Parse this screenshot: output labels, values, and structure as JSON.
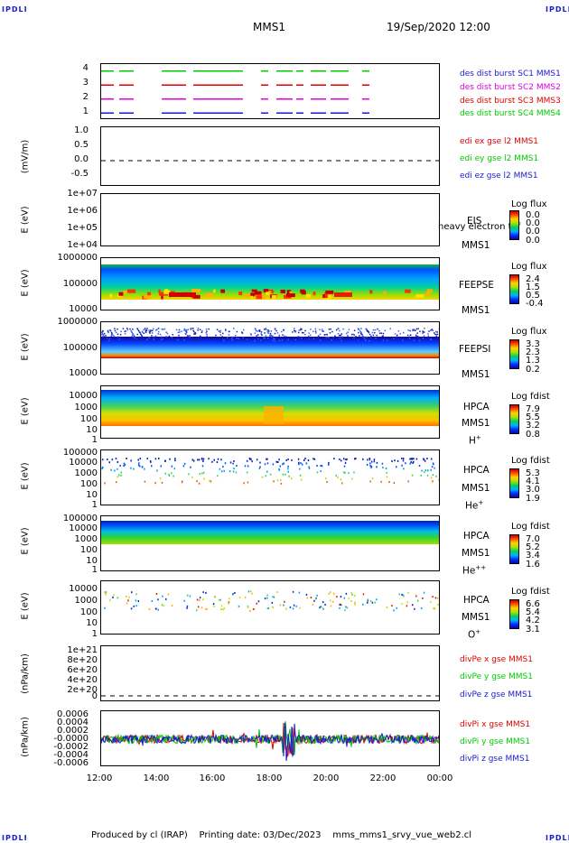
{
  "corners": {
    "tl": "IPDLI",
    "tr": "IPDLI",
    "bl": "IPDLI",
    "br": "IPDLI"
  },
  "header": {
    "spacecraft": "MMS1",
    "datetime": "19/Sep/2020 12:00"
  },
  "footer": {
    "text": "Produced by cl (IRAP)    Printing date: 03/Dec/2023    mms_mms1_srvy_vue_web2.cl"
  },
  "xaxis": {
    "ticks": [
      "12:00",
      "14:00",
      "16:00",
      "18:00",
      "20:00",
      "22:00",
      "00:00"
    ]
  },
  "colors": {
    "blue": "#1a1ad0",
    "red": "#e00000",
    "green": "#00cc00",
    "magenta": "#e000e0"
  },
  "chart_data": [
    {
      "type": "line",
      "id": "burst",
      "ylim": [
        0.5,
        4.5
      ],
      "yticks": [
        "4",
        "3",
        "2",
        "1"
      ],
      "series": [
        {
          "name": "des dist burst SC1 MMS1",
          "color": "#1a1ad0",
          "level": 1
        },
        {
          "name": "des dist burst SC2 MMS2",
          "color": "#e000e0",
          "level": 2
        },
        {
          "name": "des dist burst SC3 MMS3",
          "color": "#e00000",
          "level": 3
        },
        {
          "name": "des dist burst SC4 MMS4",
          "color": "#00cc00",
          "level": 4
        }
      ]
    },
    {
      "type": "line",
      "id": "edi",
      "ylabel": "(mV/m)",
      "ylim": [
        -0.75,
        1.0
      ],
      "yticks": [
        "1.0",
        "0.5",
        "0.0",
        "-0.5"
      ],
      "series": [
        {
          "name": "edi ex gse l2 MMS1",
          "color": "#e00000"
        },
        {
          "name": "edi ey gse l2 MMS1",
          "color": "#00cc00"
        },
        {
          "name": "edi ez gse l2 MMS1",
          "color": "#1a1ad0"
        }
      ]
    },
    {
      "type": "heatmap",
      "id": "eis",
      "ylabel": "E (eV)",
      "yticks": [
        "1e+07",
        "1e+06",
        "1e+05",
        "1e+04"
      ],
      "instrument": "EIS",
      "overlap_text": "heavy electron tof",
      "spacecraft": "MMS1",
      "colorbar": {
        "title": "Log flux",
        "values": [
          "0.0",
          "0.0",
          "0.0",
          "0.0"
        ]
      }
    },
    {
      "type": "heatmap",
      "id": "feepse",
      "ylabel": "E (eV)",
      "yticks": [
        "1000000",
        "100000",
        "10000"
      ],
      "instrument": "FEEPSE",
      "spacecraft": "MMS1",
      "colorbar": {
        "title": "Log flux",
        "values": [
          "2.4",
          "1.5",
          "0.5",
          "-0.4"
        ]
      }
    },
    {
      "type": "heatmap",
      "id": "feepsi",
      "ylabel": "E (eV)",
      "yticks": [
        "1000000",
        "100000",
        "10000"
      ],
      "instrument": "FEEPSI",
      "spacecraft": "MMS1",
      "colorbar": {
        "title": "Log flux",
        "values": [
          "3.3",
          "2.3",
          "1.3",
          "0.2"
        ]
      }
    },
    {
      "type": "heatmap",
      "id": "hpca_h",
      "ylabel": "E (eV)",
      "yticks": [
        "10000",
        "1000",
        "100",
        "10",
        "1"
      ],
      "instrument": "HPCA",
      "spacecraft": "MMS1",
      "species": "H",
      "species_sup": "+",
      "colorbar": {
        "title": "Log fdist",
        "values": [
          "7.9",
          "5.5",
          "3.2",
          "0.8"
        ]
      }
    },
    {
      "type": "heatmap",
      "id": "hpca_he",
      "ylabel": "E (eV)",
      "yticks": [
        "100000",
        "10000",
        "1000",
        "100",
        "10",
        "1"
      ],
      "instrument": "HPCA",
      "spacecraft": "MMS1",
      "species": "He",
      "species_sup": "+",
      "colorbar": {
        "title": "Log fdist",
        "values": [
          "5.3",
          "4.1",
          "3.0",
          "1.9"
        ]
      }
    },
    {
      "type": "heatmap",
      "id": "hpca_hepp",
      "ylabel": "E (eV)",
      "yticks": [
        "100000",
        "10000",
        "1000",
        "100",
        "10",
        "1"
      ],
      "instrument": "HPCA",
      "spacecraft": "MMS1",
      "species": "He",
      "species_sup": "++",
      "colorbar": {
        "title": "Log fdist",
        "values": [
          "7.0",
          "5.2",
          "3.4",
          "1.6"
        ]
      }
    },
    {
      "type": "heatmap",
      "id": "hpca_o",
      "ylabel": "E (eV)",
      "yticks": [
        "10000",
        "1000",
        "100",
        "10",
        "1"
      ],
      "instrument": "HPCA",
      "spacecraft": "MMS1",
      "species": "O",
      "species_sup": "+",
      "colorbar": {
        "title": "Log fdist",
        "values": [
          "6.6",
          "5.4",
          "4.2",
          "3.1"
        ]
      }
    },
    {
      "type": "line",
      "id": "divpe",
      "ylabel": "(nPa/km)",
      "yticks": [
        "1e+21",
        "8e+20",
        "6e+20",
        "4e+20",
        "2e+20",
        "0"
      ],
      "series": [
        {
          "name": "divPe x gse MMS1",
          "color": "#e00000"
        },
        {
          "name": "divPe y gse MMS1",
          "color": "#00cc00"
        },
        {
          "name": "divPe z gse MMS1",
          "color": "#1a1ad0"
        }
      ]
    },
    {
      "type": "line",
      "id": "divpi",
      "ylabel": "(nPa/km)",
      "yticks": [
        "0.0006",
        "0.0004",
        "0.0002",
        "-0.0000",
        "-0.0002",
        "-0.0004",
        "-0.0006"
      ],
      "series": [
        {
          "name": "divPi x gse MMS1",
          "color": "#e00000"
        },
        {
          "name": "divPi y gse MMS1",
          "color": "#00cc00"
        },
        {
          "name": "divPi z gse MMS1",
          "color": "#1a1ad0"
        }
      ]
    }
  ]
}
